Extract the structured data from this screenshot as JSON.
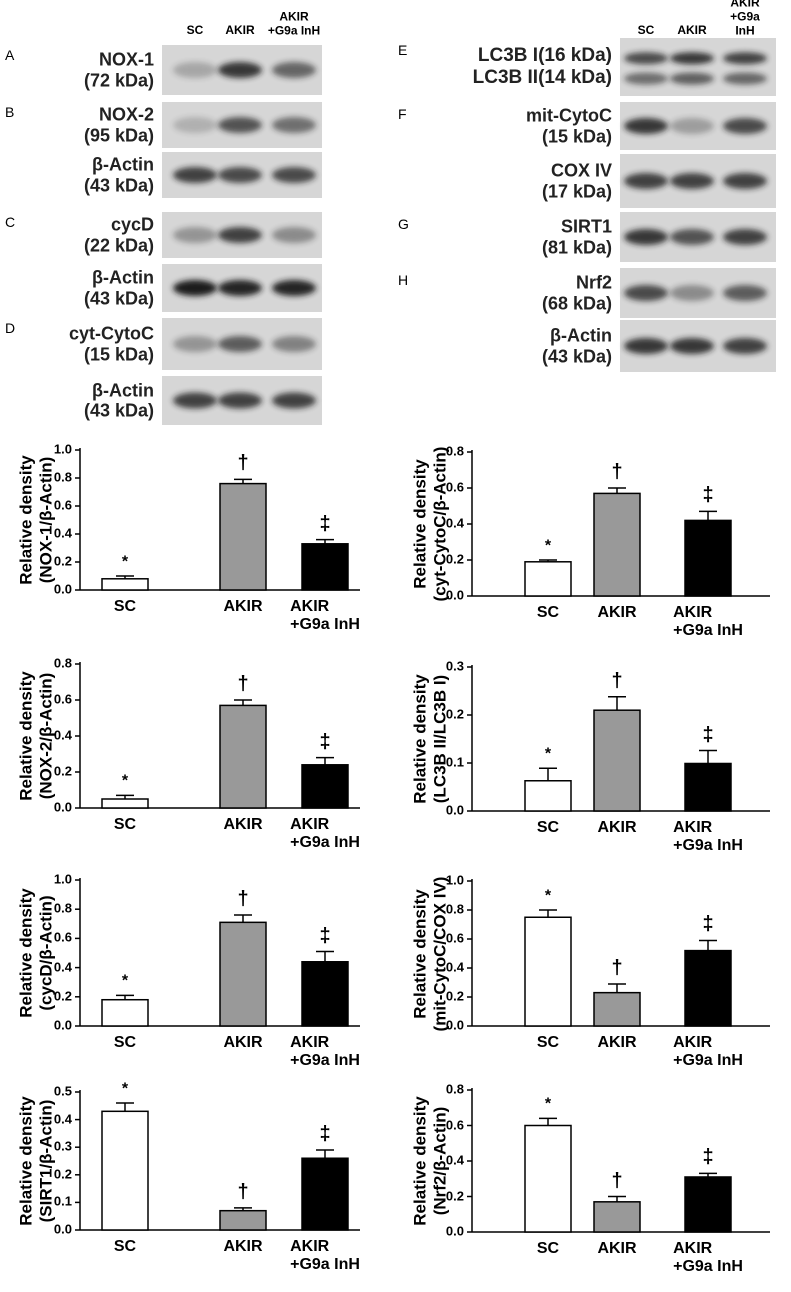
{
  "blots": {
    "lanes": [
      "SC",
      "AKIR",
      "AKIR\n+G9a InH"
    ],
    "left": [
      {
        "panel": "A",
        "label": "NOX-1\n(72 kDa)"
      },
      {
        "panel": "B",
        "label": "NOX-2\n(95 kDa)"
      },
      {
        "label": "β-Actin\n(43 kDa)"
      },
      {
        "panel": "C",
        "label": "cycD\n(22 kDa)"
      },
      {
        "label": "β-Actin\n(43 kDa)"
      },
      {
        "panel": "D",
        "label": "cyt-CytoC\n(15 kDa)"
      },
      {
        "label": "β-Actin\n(43 kDa)"
      }
    ],
    "right": [
      {
        "panel": "E",
        "label": "LC3B I(16 kDa)\nLC3B II(14 kDa)"
      },
      {
        "panel": "F",
        "label": "mit-CytoC\n(15 kDa)"
      },
      {
        "label": "COX IV\n(17 kDa)"
      },
      {
        "panel": "G",
        "label": "SIRT1\n(81 kDa)"
      },
      {
        "panel": "H",
        "label": "Nrf2\n(68 kDa)"
      },
      {
        "label": "β-Actin\n(43 kDa)"
      }
    ]
  },
  "chart_data": [
    {
      "type": "bar",
      "ylabel": "Relative density\n(NOX-1/β-Actin)",
      "categories": [
        "SC",
        "AKIR",
        "AKIR\n+G9a InH"
      ],
      "colors": [
        "#ffffff",
        "#999999",
        "#000000"
      ],
      "values": [
        0.08,
        0.76,
        0.33
      ],
      "errors": [
        0.02,
        0.03,
        0.03
      ],
      "annotations": [
        "*",
        "†",
        "‡"
      ],
      "ylim": [
        0,
        1
      ],
      "yticks": [
        {
          "value": 0,
          "label": "0.0"
        },
        0.2,
        0.4,
        0.6,
        0.8,
        {
          "value": 1,
          "label": "1.0"
        }
      ]
    },
    {
      "type": "bar",
      "ylabel": "Relative density\n(cyt-CytoC/β-Actin)",
      "categories": [
        "SC",
        "AKIR",
        "AKIR\n+G9a InH"
      ],
      "colors": [
        "#ffffff",
        "#999999",
        "#000000"
      ],
      "values": [
        0.19,
        0.57,
        0.42
      ],
      "errors": [
        0.01,
        0.03,
        0.05
      ],
      "annotations": [
        "*",
        "†",
        "‡"
      ],
      "ylim": [
        0,
        0.8
      ],
      "yticks": [
        {
          "value": 0,
          "label": "0.0"
        },
        0.2,
        0.4,
        0.6,
        0.8
      ]
    },
    {
      "type": "bar",
      "ylabel": "Relative density\n(NOX-2/β-Actin)",
      "categories": [
        "SC",
        "AKIR",
        "AKIR\n+G9a InH"
      ],
      "colors": [
        "#ffffff",
        "#999999",
        "#000000"
      ],
      "values": [
        0.05,
        0.57,
        0.24
      ],
      "errors": [
        0.02,
        0.03,
        0.04
      ],
      "annotations": [
        "*",
        "†",
        "‡"
      ],
      "ylim": [
        0,
        0.8
      ],
      "yticks": [
        {
          "value": 0,
          "label": "0.0"
        },
        0.2,
        0.4,
        0.6,
        0.8
      ]
    },
    {
      "type": "bar",
      "ylabel": "Relative density\n(LC3B II/LC3B I)",
      "categories": [
        "SC",
        "AKIR",
        "AKIR\n+G9a InH"
      ],
      "colors": [
        "#ffffff",
        "#999999",
        "#000000"
      ],
      "values": [
        0.063,
        0.21,
        0.099
      ],
      "errors": [
        0.026,
        0.028,
        0.027
      ],
      "annotations": [
        "*",
        "†",
        "‡"
      ],
      "ylim": [
        0,
        0.3
      ],
      "yticks": [
        {
          "value": 0,
          "label": "0.0"
        },
        0.1,
        0.2,
        0.3
      ]
    },
    {
      "type": "bar",
      "ylabel": "Relative density\n(cycD/β-Actin)",
      "categories": [
        "SC",
        "AKIR",
        "AKIR\n+G9a InH"
      ],
      "colors": [
        "#ffffff",
        "#999999",
        "#000000"
      ],
      "values": [
        0.18,
        0.71,
        0.44
      ],
      "errors": [
        0.03,
        0.05,
        0.07
      ],
      "annotations": [
        "*",
        "†",
        "‡"
      ],
      "ylim": [
        0,
        1
      ],
      "yticks": [
        {
          "value": 0,
          "label": "0.0"
        },
        0.2,
        0.4,
        0.6,
        0.8,
        {
          "value": 1,
          "label": "1.0"
        }
      ]
    },
    {
      "type": "bar",
      "ylabel": "Relative density\n(mit-CytoC/COX IV)",
      "categories": [
        "SC",
        "AKIR",
        "AKIR\n+G9a InH"
      ],
      "colors": [
        "#ffffff",
        "#999999",
        "#000000"
      ],
      "values": [
        0.75,
        0.23,
        0.52
      ],
      "errors": [
        0.05,
        0.06,
        0.07
      ],
      "annotations": [
        "*",
        "†",
        "‡"
      ],
      "ylim": [
        0,
        1
      ],
      "yticks": [
        {
          "value": 0,
          "label": "0.0"
        },
        0.2,
        0.4,
        0.6,
        0.8,
        {
          "value": 1,
          "label": "1.0"
        }
      ]
    },
    {
      "type": "bar",
      "ylabel": "Relative density\n(SIRT1/β-Actin)",
      "categories": [
        "SC",
        "AKIR",
        "AKIR\n+G9a InH"
      ],
      "colors": [
        "#ffffff",
        "#999999",
        "#000000"
      ],
      "values": [
        0.43,
        0.07,
        0.26
      ],
      "errors": [
        0.03,
        0.01,
        0.03
      ],
      "annotations": [
        "*",
        "†",
        "‡"
      ],
      "ylim": [
        0,
        0.5
      ],
      "yticks": [
        {
          "value": 0,
          "label": "0.0"
        },
        0.1,
        0.2,
        0.3,
        0.4,
        0.5
      ]
    },
    {
      "type": "bar",
      "ylabel": "Relative density\n(Nrf2/β-Actin)",
      "categories": [
        "SC",
        "AKIR",
        "AKIR\n+G9a InH"
      ],
      "colors": [
        "#ffffff",
        "#999999",
        "#000000"
      ],
      "values": [
        0.6,
        0.17,
        0.31
      ],
      "errors": [
        0.04,
        0.03,
        0.02
      ],
      "annotations": [
        "*",
        "†",
        "‡"
      ],
      "ylim": [
        0,
        0.8
      ],
      "yticks": [
        {
          "value": 0,
          "label": "0.0"
        },
        0.2,
        0.4,
        0.6,
        0.8
      ]
    }
  ]
}
